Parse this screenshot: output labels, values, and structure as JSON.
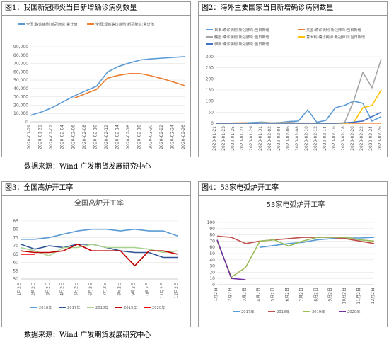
{
  "panels": {
    "p1": {
      "title": "图1：我国新冠肺炎当日新增确诊病例数量"
    },
    "p2": {
      "title": "图2：海外主要国家当日新增确诊病例数量"
    },
    "p3": {
      "title": "图3：全国高炉开工率"
    },
    "p4": {
      "title": "图4：53家电弧炉开工率"
    }
  },
  "source_note_top": "数据来源：Wind 广发期货发展研究中心",
  "source_note_bottom": "数据来源：Wind 广发期货发展研究中心",
  "chart_data": [
    {
      "type": "line",
      "title": "",
      "x": [
        "2020-01-29",
        "2020-01-31",
        "2020-02-02",
        "2020-02-04",
        "2020-02-06",
        "2020-02-08",
        "2020-02-10",
        "2020-02-12",
        "2020-02-14",
        "2020-02-16",
        "2020-02-18",
        "2020-02-20",
        "2020-02-22",
        "2020-02-24",
        "2020-02-26"
      ],
      "ylim": [
        0,
        90000
      ],
      "yticks": [
        "0",
        "10,000",
        "20,000",
        "30,000",
        "40,000",
        "50,000",
        "60,000",
        "70,000",
        "80,000",
        "90,000"
      ],
      "legend": "top",
      "color_map": {
        "全国:确诊病例:新冠肺炎:累计值": "#5b9bd5",
        "全国:现有确诊病例:新冠肺炎:累计值": "#ed7d31"
      },
      "series": [
        {
          "name": "全国:确诊病例:新冠肺炎:累计值",
          "values": [
            7700,
            11800,
            17200,
            24300,
            31200,
            37200,
            42600,
            59800,
            66500,
            70600,
            74200,
            75500,
            76400,
            77300,
            78200
          ]
        },
        {
          "name": "全国:现有确诊病例:新冠肺炎:累计值",
          "values": [
            null,
            null,
            null,
            null,
            28500,
            33700,
            38900,
            52500,
            55800,
            57900,
            57800,
            55100,
            51600,
            47700,
            43400
          ]
        }
      ]
    },
    {
      "type": "line",
      "title": "",
      "x": [
        "2020-01-21",
        "2020-01-23",
        "2020-01-25",
        "2020-01-27",
        "2020-01-29",
        "2020-01-31",
        "2020-02-02",
        "2020-02-04",
        "2020-02-06",
        "2020-02-08",
        "2020-02-10",
        "2020-02-12",
        "2020-02-14",
        "2020-02-16",
        "2020-02-18",
        "2020-02-20",
        "2020-02-22",
        "2020-02-24",
        "2020-02-26"
      ],
      "ylim": [
        0,
        300
      ],
      "yticks": [
        "0",
        "50",
        "100",
        "150",
        "200",
        "250",
        "300"
      ],
      "legend": "top",
      "color_map": {
        "日本:确诊病例:新冠肺炎:当日新增": "#5b9bd5",
        "美国:确诊病例:新冠肺炎:当日新增": "#ed7d31",
        "韩国:确诊病例:新冠肺炎:当日新增": "#a5a5a5",
        "意大利:确诊病例:新冠肺炎:当日新增": "#ffc000",
        "伊朗:确诊病例:新冠肺炎:当日新增": "#4472c4"
      },
      "series": [
        {
          "name": "日本:确诊病例:新冠肺炎:当日新增",
          "values": [
            0,
            0,
            0,
            1,
            3,
            5,
            2,
            3,
            8,
            10,
            60,
            4,
            13,
            70,
            80,
            100,
            90,
            10,
            30
          ]
        },
        {
          "name": "美国:确诊病例:新冠肺炎:当日新增",
          "values": [
            0,
            0,
            1,
            2,
            0,
            1,
            2,
            0,
            1,
            0,
            0,
            1,
            0,
            0,
            0,
            0,
            0,
            1,
            0
          ]
        },
        {
          "name": "韩国:确诊病例:新冠肺炎:当日新增",
          "values": [
            0,
            0,
            1,
            0,
            0,
            1,
            2,
            3,
            4,
            1,
            1,
            0,
            0,
            0,
            1,
            100,
            230,
            160,
            290
          ]
        },
        {
          "name": "意大利:确诊病例:新冠肺炎:当日新增",
          "values": [
            0,
            0,
            0,
            0,
            0,
            2,
            0,
            0,
            0,
            0,
            0,
            0,
            0,
            0,
            0,
            3,
            70,
            80,
            150
          ]
        },
        {
          "name": "伊朗:确诊病例:新冠肺炎:当日新增",
          "values": [
            0,
            0,
            0,
            0,
            0,
            0,
            0,
            0,
            0,
            0,
            0,
            0,
            0,
            0,
            2,
            5,
            10,
            30,
            50
          ]
        }
      ]
    },
    {
      "type": "line",
      "title": "全国高炉开工率",
      "x": [
        "1月2日",
        "2月2日",
        "3月2日",
        "4月2日",
        "5月2日",
        "6月2日",
        "7月2日",
        "8月2日",
        "9月2日",
        "10月2日",
        "11月2日",
        "12月2日"
      ],
      "ylim": [
        50,
        85
      ],
      "yticks": [
        "50",
        "55",
        "60",
        "65",
        "70",
        "75",
        "80",
        "85"
      ],
      "legend": "bottom",
      "color_map": {
        "2016年": "#5b9bd5",
        "2017年": "#2f5597",
        "2018年": "#a9d18e",
        "2019年": "#c00000",
        "2020年": "#ff0000"
      },
      "series": [
        {
          "name": "2016年",
          "values": [
            74,
            74,
            75,
            77,
            79,
            80,
            80,
            79,
            80,
            79,
            79,
            76
          ]
        },
        {
          "name": "2017年",
          "values": [
            71,
            68,
            70,
            69,
            71,
            71,
            69,
            67,
            66,
            66,
            63,
            63
          ]
        },
        {
          "name": "2018年",
          "values": [
            69,
            67,
            64,
            69,
            69,
            71,
            69,
            69,
            69,
            68,
            66,
            67
          ]
        },
        {
          "name": "2019年",
          "values": [
            67,
            66,
            66,
            67,
            71,
            67,
            67,
            67,
            58,
            67,
            67,
            65
          ]
        },
        {
          "name": "2020年",
          "values": [
            65,
            65,
            null,
            null,
            null,
            null,
            null,
            null,
            null,
            null,
            null,
            null
          ]
        }
      ]
    },
    {
      "type": "line",
      "title": "53家电弧炉开工率",
      "x": [
        "1月2日",
        "2月2日",
        "3月2日",
        "4月2日",
        "5月2日",
        "6月2日",
        "7月2日",
        "8月2日",
        "9月2日",
        "10月2日",
        "11月2日",
        "12月2日"
      ],
      "ylim": [
        0,
        100
      ],
      "yticks": [
        "0",
        "10",
        "20",
        "30",
        "40",
        "50",
        "60",
        "70",
        "80",
        "90",
        "100"
      ],
      "legend": "bottom",
      "color_map": {
        "2017年": "#5b9bd5",
        "2018年": "#c0504d",
        "2019年": "#9bbb59",
        "2020年": "#7030a0"
      },
      "series": [
        {
          "name": "2017年",
          "values": [
            null,
            null,
            null,
            60,
            63,
            66,
            68,
            72,
            74,
            75,
            75,
            76
          ]
        },
        {
          "name": "2018年",
          "values": [
            78,
            76,
            66,
            70,
            72,
            74,
            76,
            76,
            76,
            74,
            70,
            66
          ]
        },
        {
          "name": "2019年",
          "values": [
            70,
            12,
            28,
            70,
            72,
            62,
            70,
            76,
            76,
            76,
            72,
            70
          ]
        },
        {
          "name": "2020年",
          "values": [
            72,
            10,
            8,
            null,
            null,
            null,
            null,
            null,
            null,
            null,
            null,
            null
          ]
        }
      ]
    }
  ]
}
